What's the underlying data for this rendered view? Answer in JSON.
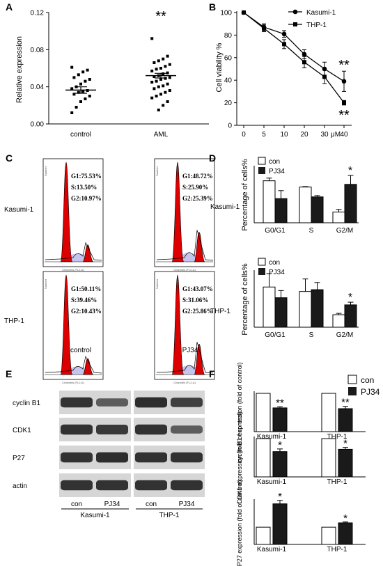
{
  "panels": {
    "A": {
      "label": "A",
      "chart_data": {
        "type": "scatter",
        "categories": [
          "control",
          "AML"
        ],
        "ylabel": "Relative expression",
        "ylim": [
          0.0,
          0.12
        ],
        "yticks": [
          "0.00",
          "0.04",
          "0.08",
          "0.12"
        ],
        "significance": [
          "",
          "**"
        ],
        "means": [
          0.0365,
          0.052
        ],
        "sems": [
          0.0035,
          0.0025
        ],
        "points": {
          "control": [
            0.061,
            0.058,
            0.056,
            0.053,
            0.05,
            0.048,
            0.046,
            0.043,
            0.04,
            0.038,
            0.036,
            0.035,
            0.034,
            0.032,
            0.03,
            0.027,
            0.024,
            0.018,
            0.012
          ],
          "AML": [
            0.092,
            0.073,
            0.07,
            0.068,
            0.066,
            0.064,
            0.062,
            0.06,
            0.059,
            0.057,
            0.055,
            0.054,
            0.052,
            0.051,
            0.05,
            0.049,
            0.048,
            0.046,
            0.045,
            0.043,
            0.041,
            0.04,
            0.038,
            0.036,
            0.034,
            0.032,
            0.03,
            0.028,
            0.024,
            0.02,
            0.015
          ]
        }
      }
    },
    "B": {
      "label": "B",
      "chart_data": {
        "type": "line",
        "x": [
          "0",
          "5",
          "10",
          "20",
          "30",
          "40"
        ],
        "xunit": "μM",
        "ylabel": "Cell viability %",
        "ylim": [
          0,
          100
        ],
        "yticks": [
          "0",
          "20",
          "40",
          "60",
          "80",
          "100"
        ],
        "series": [
          {
            "name": "Kasumi-1",
            "marker": "circle",
            "values": [
              100,
              87,
              81,
              63,
              50,
              39
            ],
            "errors": [
              1,
              3,
              3,
              4,
              6,
              9
            ],
            "significance": "**"
          },
          {
            "name": "THP-1",
            "marker": "square",
            "values": [
              100,
              86,
              72,
              56,
              43,
              20
            ],
            "errors": [
              1,
              3,
              4,
              5,
              6,
              2
            ],
            "significance": "**"
          }
        ]
      }
    },
    "C": {
      "label": "C",
      "rows": [
        "Kasumi-1",
        "THP-1"
      ],
      "cols": [
        "control",
        "PJ34"
      ],
      "axis_x": "Channels (FL2-A)",
      "axis_y": "Number",
      "values": [
        [
          {
            "g1": "G1:75.53%",
            "s": "S:13.50%",
            "g2": "G2:10.97%"
          },
          {
            "g1": "G1:48.72%",
            "s": "S:25.90%",
            "g2": "G2:25.39%"
          }
        ],
        [
          {
            "g1": "G1:50.11%",
            "s": "S:39.46%",
            "g2": "G2:10.43%"
          },
          {
            "g1": "G1:43.07%",
            "s": "S:31.06%",
            "g2": "G2:25.86%"
          }
        ]
      ],
      "g2_fraction": [
        [
          0.11,
          0.25
        ],
        [
          0.1,
          0.26
        ]
      ]
    },
    "D": {
      "label": "D",
      "chart_data": [
        {
          "type": "bar",
          "row_label": "Kasumi-1",
          "categories": [
            "G0/G1",
            "S",
            "G2/M"
          ],
          "ylabel": "Percentage of cells%",
          "ylim": [
            0,
            60
          ],
          "series": [
            {
              "name": "con",
              "values": [
                47,
                40,
                12
              ],
              "errors": [
                3,
                0.5,
                3
              ]
            },
            {
              "name": "PJ34",
              "values": [
                27,
                29,
                43
              ],
              "errors": [
                9,
                1.5,
                10
              ]
            }
          ],
          "significance": [
            "",
            "",
            "*"
          ]
        },
        {
          "type": "bar",
          "row_label": "THP-1",
          "categories": [
            "G0/G1",
            "S",
            "G2/M"
          ],
          "ylabel": "Percentage of cells%",
          "ylim": [
            0,
            60
          ],
          "series": [
            {
              "name": "con",
              "values": [
                45,
                40,
                14
              ],
              "errors": [
                15,
                14,
                1.5
              ]
            },
            {
              "name": "PJ34",
              "values": [
                33,
                42,
                25
              ],
              "errors": [
                8,
                8,
                3
              ]
            }
          ],
          "significance": [
            "",
            "",
            "*"
          ]
        }
      ]
    },
    "E": {
      "label": "E",
      "proteins": [
        "cyclin B1",
        "CDK1",
        "P27",
        "actin"
      ],
      "lanes": [
        "con",
        "PJ34",
        "con",
        "PJ34"
      ],
      "groups": [
        "Kasumi-1",
        "THP-1"
      ],
      "intensity": [
        [
          0.8,
          0.45,
          0.85,
          0.7
        ],
        [
          0.8,
          0.75,
          0.8,
          0.45
        ],
        [
          0.8,
          0.85,
          0.8,
          0.8
        ],
        [
          0.8,
          0.8,
          0.8,
          0.8
        ]
      ]
    },
    "F": {
      "label": "F",
      "legend": [
        "con",
        "PJ34"
      ],
      "chart_data": [
        {
          "type": "bar",
          "ylabel": "cyclin B1 expression (fold of control)",
          "categories": [
            "Kasumi-1",
            "THP-1"
          ],
          "ylim": [
            0,
            1
          ],
          "series": [
            {
              "name": "con",
              "values": [
                1.0,
                1.0
              ],
              "errors": [
                0,
                0
              ]
            },
            {
              "name": "PJ34",
              "values": [
                0.62,
                0.6
              ],
              "errors": [
                0.03,
                0.06
              ]
            }
          ],
          "significance": [
            "**",
            "**"
          ]
        },
        {
          "type": "bar",
          "ylabel": "CDK1 expression (fold of control)",
          "categories": [
            "Kasumi-1",
            "THP-1"
          ],
          "ylim": [
            0,
            1
          ],
          "series": [
            {
              "name": "con",
              "values": [
                1.0,
                1.0
              ],
              "errors": [
                0,
                0
              ]
            },
            {
              "name": "PJ34",
              "values": [
                0.66,
                0.72
              ],
              "errors": [
                0.07,
                0.05
              ]
            }
          ],
          "significance": [
            "*",
            "*"
          ]
        },
        {
          "type": "bar",
          "ylabel": "P27 expression (fold of control)",
          "categories": [
            "Kasumi-1",
            "THP-1"
          ],
          "ylim": [
            0,
            2.5
          ],
          "series": [
            {
              "name": "con",
              "values": [
                1.0,
                1.0
              ],
              "errors": [
                0,
                0
              ]
            },
            {
              "name": "PJ34",
              "values": [
                2.35,
                1.25
              ],
              "errors": [
                0.2,
                0.05
              ]
            }
          ],
          "significance": [
            "*",
            "*"
          ]
        }
      ]
    }
  },
  "colors": {
    "hist_red": "#dd0000",
    "hist_fill": "#c5c5ee",
    "dark_bar": "#1a1a1a"
  }
}
